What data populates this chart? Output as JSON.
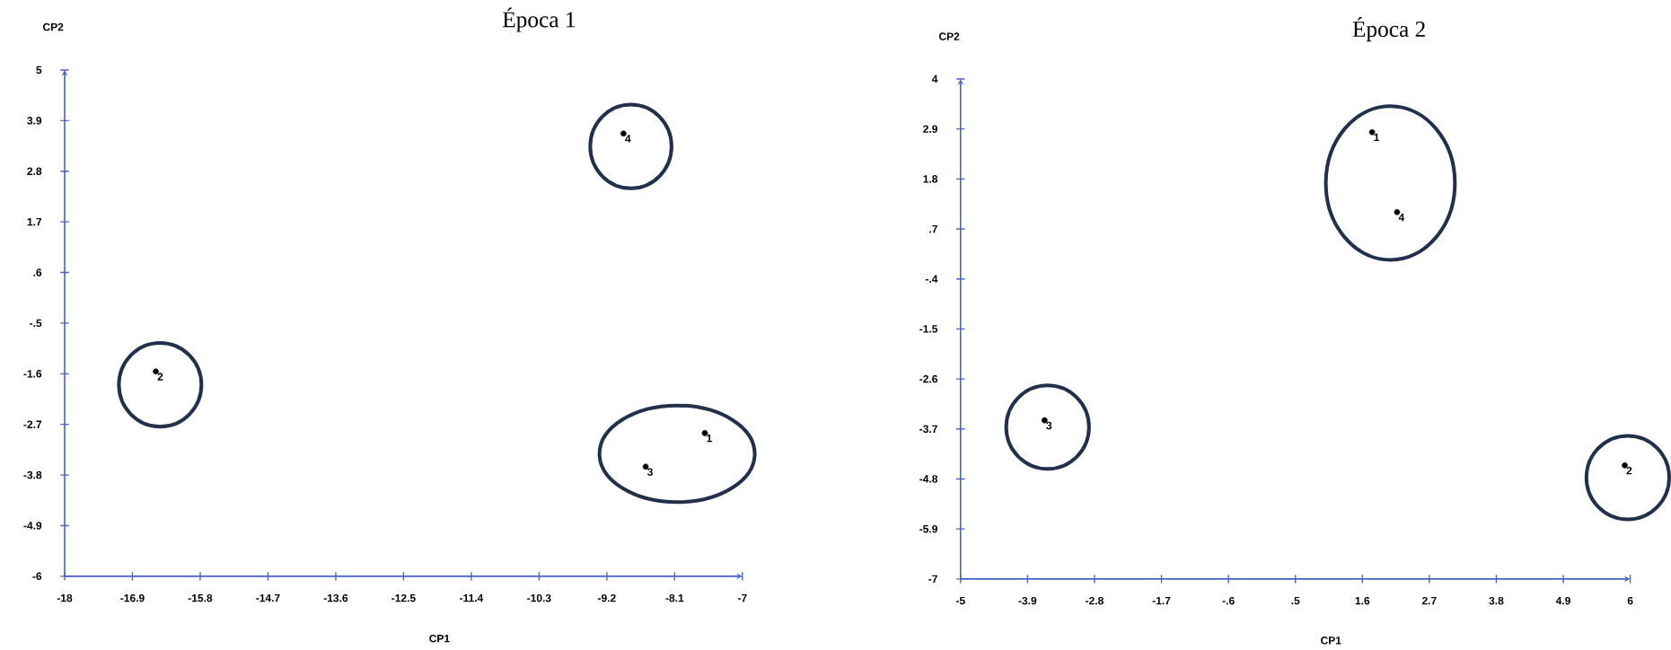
{
  "chart_data": [
    {
      "type": "scatter",
      "title": "Época 1",
      "xlabel": "CP1",
      "ylabel": "CP2",
      "color": "#000000",
      "x": [
        -7.61,
        -16.52,
        -8.57,
        -8.93
      ],
      "values": [
        -2.89,
        -1.55,
        -3.62,
        3.62
      ],
      "xlim": [
        -18,
        -7
      ],
      "ylim": [
        -6,
        5
      ],
      "xticks": [
        -18,
        -16.9,
        -15.8,
        -14.7,
        -13.6,
        -12.5,
        -11.4,
        -10.3,
        -9.2,
        -8.1,
        -7
      ],
      "yticks": [
        -6,
        -4.9,
        -3.8,
        -2.7,
        -1.6,
        {
          "value": -0.5,
          "label": "-.5"
        },
        {
          "value": 0.6,
          "label": ".6"
        },
        1.7,
        2.8,
        3.9,
        5
      ],
      "annotations": [
        {
          "text": "1",
          "x": -7.61,
          "y": -2.89
        },
        {
          "text": "2",
          "x": -16.52,
          "y": -1.55
        },
        {
          "text": "3",
          "x": -8.57,
          "y": -3.62
        },
        {
          "text": "4",
          "x": -8.93,
          "y": 3.62
        }
      ]
    },
    {
      "type": "scatter",
      "title": "Época 2",
      "xlabel": "CP1",
      "ylabel": "CP2",
      "color": "#000000",
      "x": [
        1.76,
        5.91,
        -3.62,
        2.17
      ],
      "values": [
        2.83,
        -4.5,
        -3.51,
        1.07
      ],
      "xlim": [
        -5,
        6
      ],
      "ylim": [
        -7,
        4
      ],
      "xticks": [
        -5,
        -3.9,
        -2.8,
        -1.7,
        {
          "value": -0.6,
          "label": "-.6"
        },
        {
          "value": 0.5,
          "label": ".5"
        },
        1.6,
        2.7,
        3.8,
        4.9,
        6
      ],
      "yticks": [
        -7,
        -5.9,
        -4.8,
        -3.7,
        -2.6,
        -1.5,
        {
          "value": -0.4,
          "label": "-.4"
        },
        {
          "value": 0.7,
          "label": ".7"
        },
        1.8,
        2.9,
        4
      ],
      "annotations": [
        {
          "text": "1",
          "x": 1.76,
          "y": 2.83
        },
        {
          "text": "2",
          "x": 5.91,
          "y": -4.5
        },
        {
          "text": "3",
          "x": -3.62,
          "y": -3.51
        },
        {
          "text": "4",
          "x": 2.17,
          "y": 1.07
        }
      ]
    }
  ]
}
